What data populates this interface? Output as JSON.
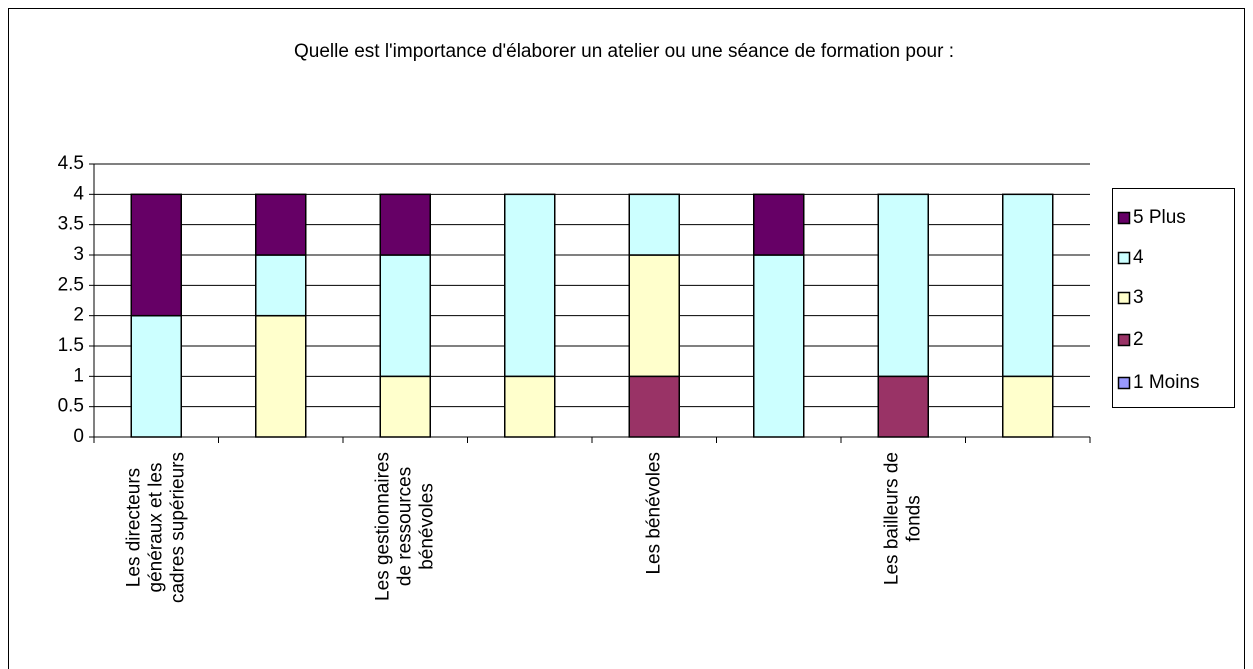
{
  "chart_data": {
    "type": "stacked_bar",
    "title": "Quelle est l'importance d'élaborer un atelier ou une séance de formation pour :",
    "categories": [
      "Les directeurs généraux et les cadres supérieurs",
      null,
      "Les gestionnaires de ressources bénévoles",
      null,
      "Les bénévoles",
      null,
      "Les bailleurs de fonds",
      null
    ],
    "series": [
      {
        "name": "1 Moins",
        "color": "#9999ff",
        "values": [
          0,
          0,
          0,
          0,
          0,
          0,
          0,
          0
        ]
      },
      {
        "name": "2",
        "color": "#993366",
        "values": [
          0,
          0,
          0,
          0,
          1,
          0,
          1,
          0
        ]
      },
      {
        "name": "3",
        "color": "#ffffcc",
        "values": [
          0,
          2,
          1,
          1,
          2,
          0,
          0,
          1
        ]
      },
      {
        "name": "4",
        "color": "#ccffff",
        "values": [
          2,
          1,
          2,
          3,
          1,
          3,
          3,
          3
        ]
      },
      {
        "name": "5 Plus",
        "color": "#660066",
        "values": [
          2,
          1,
          1,
          0,
          0,
          1,
          0,
          0
        ]
      }
    ],
    "ylim": [
      0,
      4.5
    ],
    "yticks": [
      0,
      0.5,
      1,
      1.5,
      2,
      2.5,
      3,
      3.5,
      4,
      4.5
    ],
    "grid": true,
    "legend": "right"
  }
}
